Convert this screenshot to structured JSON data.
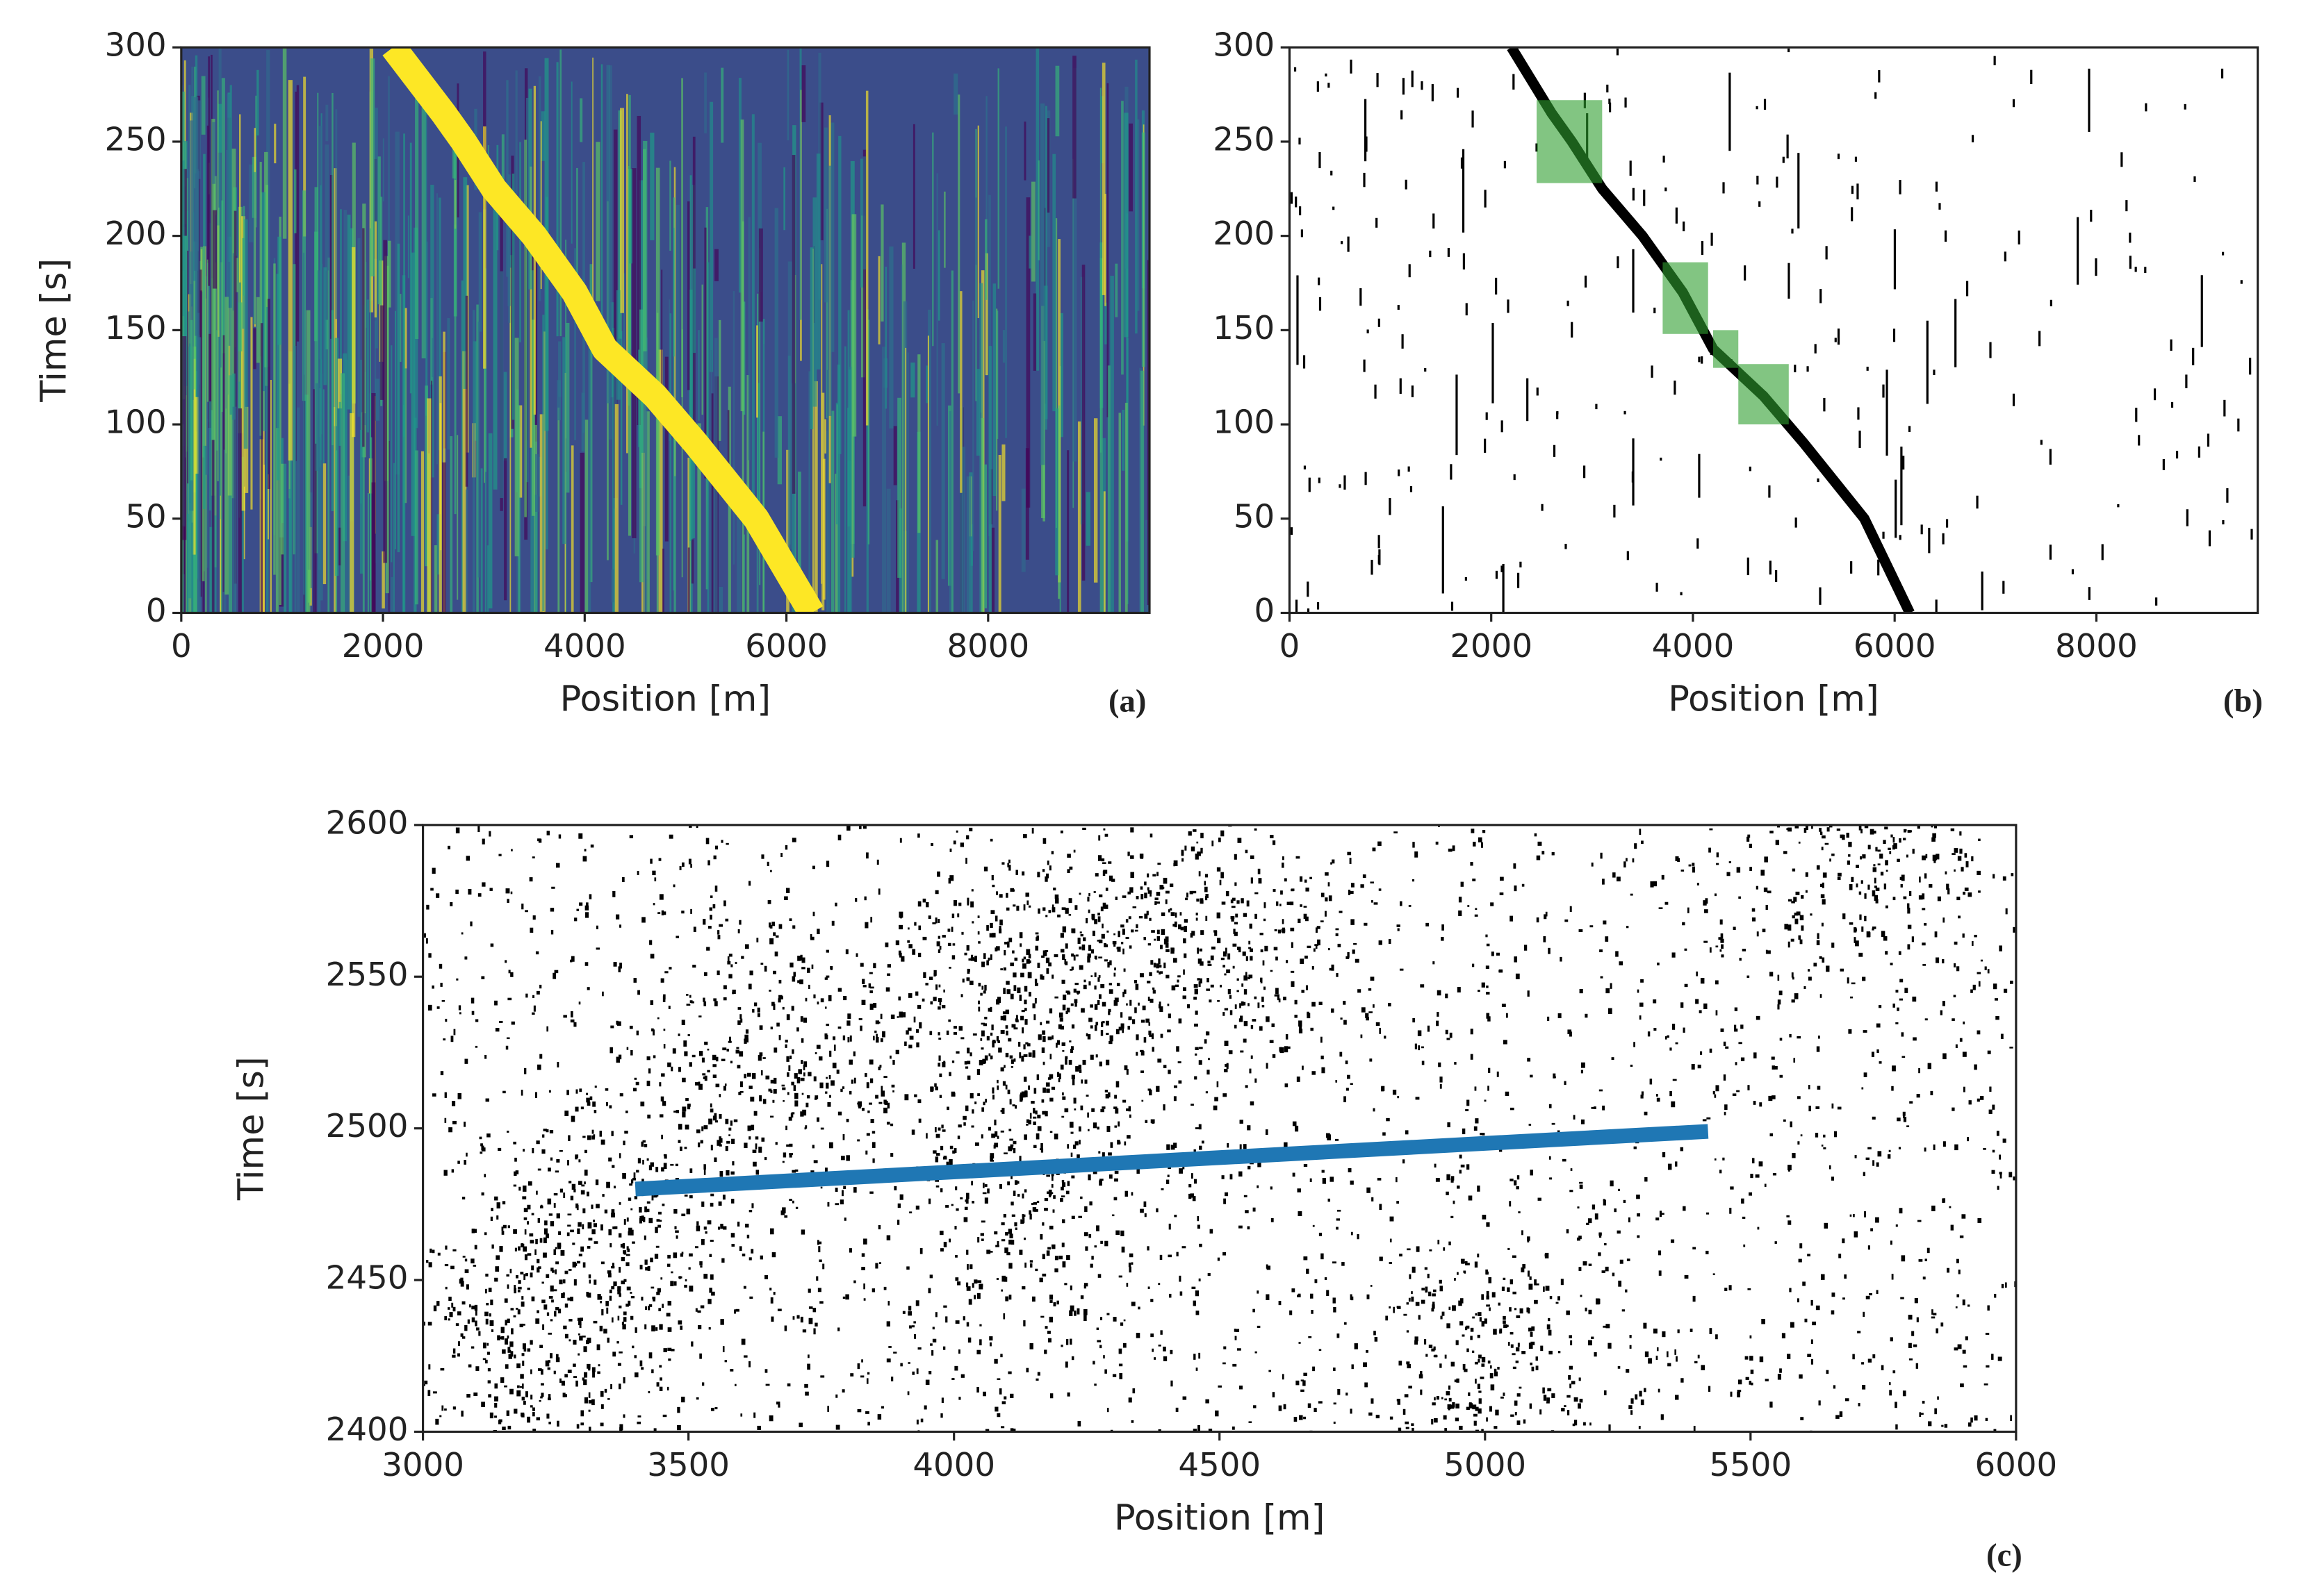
{
  "chart_data": [
    {
      "type": "heatmap",
      "xlabel": "Position [m]",
      "ylabel": "Time [s]",
      "panel_label": "(a)",
      "xlim": [
        0,
        9600
      ],
      "ylim": [
        0,
        300
      ],
      "xticks": [
        0,
        2000,
        4000,
        6000,
        8000
      ],
      "yticks": [
        0,
        50,
        100,
        150,
        200,
        250,
        300
      ],
      "lines": [
        {
          "color": "#fde725",
          "x": [
            2100,
            2600,
            2800,
            3100,
            3500,
            3900,
            4200,
            4700,
            5100,
            5700,
            6250
          ],
          "y": [
            300,
            265,
            250,
            225,
            200,
            170,
            140,
            115,
            90,
            50,
            0
          ]
        }
      ]
    },
    {
      "type": "scatter",
      "xlabel": "Position [m]",
      "panel_label": "(b)",
      "xlim": [
        0,
        9600
      ],
      "ylim": [
        0,
        300
      ],
      "xticks": [
        0,
        2000,
        4000,
        6000,
        8000
      ],
      "yticks": [
        0,
        50,
        100,
        150,
        200,
        250,
        300
      ],
      "lines": [
        {
          "color": "#000000",
          "x": [
            2200,
            2600,
            2800,
            3100,
            3500,
            3900,
            4200,
            4700,
            5100,
            5700,
            6150
          ],
          "y": [
            300,
            265,
            250,
            225,
            200,
            170,
            140,
            115,
            90,
            50,
            0
          ]
        }
      ],
      "boxes": [
        {
          "color": "#2e9e2e",
          "x": [
            2450,
            3100
          ],
          "y": [
            228,
            272
          ]
        },
        {
          "color": "#2e9e2e",
          "x": [
            3700,
            4150
          ],
          "y": [
            148,
            186
          ]
        },
        {
          "color": "#2e9e2e",
          "x": [
            4200,
            4450
          ],
          "y": [
            130,
            150
          ]
        },
        {
          "color": "#2e9e2e",
          "x": [
            4450,
            4950
          ],
          "y": [
            100,
            132
          ]
        }
      ]
    },
    {
      "type": "scatter",
      "xlabel": "Position [m]",
      "ylabel": "Time [s]",
      "panel_label": "(c)",
      "xlim": [
        3000,
        6000
      ],
      "ylim": [
        2400,
        2600
      ],
      "xticks": [
        3000,
        3500,
        4000,
        4500,
        5000,
        5500,
        6000
      ],
      "yticks": [
        2400,
        2450,
        2500,
        2550,
        2600
      ],
      "lines": [
        {
          "color": "#1f77b4",
          "x": [
            3400,
            5420
          ],
          "y": [
            2480,
            2499
          ]
        }
      ]
    }
  ]
}
